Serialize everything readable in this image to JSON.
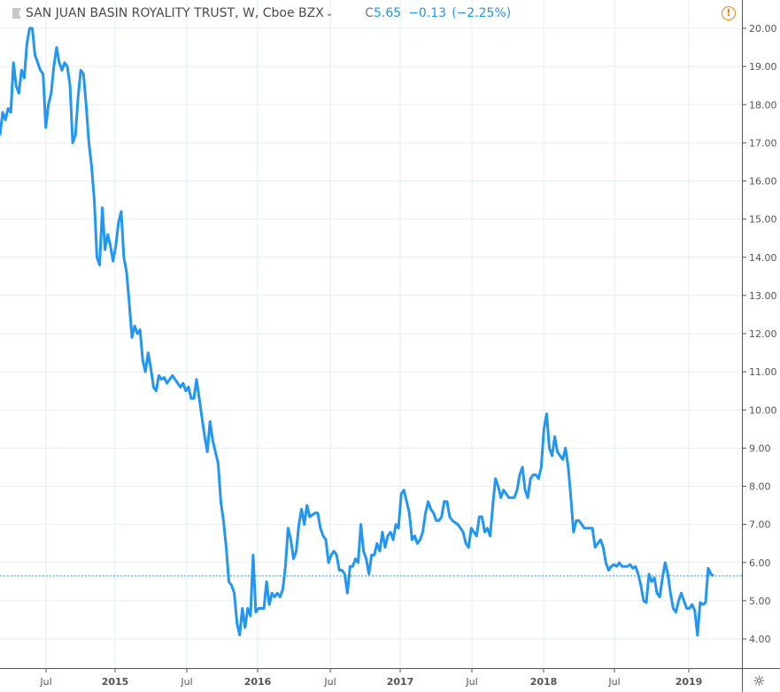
{
  "header": {
    "title": "SAN JUAN BASIN ROYALITY TRUST, W, Cboe BZX",
    "close_prefix": "C",
    "close": "5.65",
    "change": "−0.13",
    "change_pct": "(−2.25%)"
  },
  "icons": {
    "flag": "flag-icon",
    "dropdown": "chevron-down-icon",
    "warning": "warning-icon",
    "settings": "gear-icon"
  },
  "colors": {
    "line": "#2196f3",
    "grid": "#e6eef5",
    "axis": "#555555",
    "warning": "#f57c00"
  },
  "chart_data": {
    "type": "line",
    "title": "SAN JUAN BASIN ROYALITY TRUST, W, Cboe BZX",
    "interval": "weekly",
    "last_price": 5.65,
    "ylim": [
      3.2,
      20.7
    ],
    "yticks": [
      "4.00",
      "5.00",
      "6.00",
      "7.00",
      "8.00",
      "9.00",
      "10.00",
      "11.00",
      "12.00",
      "13.00",
      "14.00",
      "15.00",
      "16.00",
      "17.00",
      "18.00",
      "19.00",
      "20.00"
    ],
    "xticks": [
      "Jul",
      "2015",
      "Jul",
      "2016",
      "Jul",
      "2017",
      "Jul",
      "2018",
      "Jul",
      "2019"
    ],
    "values": [
      17.2,
      17.8,
      17.6,
      17.9,
      17.8,
      19.1,
      18.5,
      18.3,
      18.9,
      18.7,
      19.6,
      20.0,
      20.0,
      19.3,
      19.1,
      18.9,
      18.8,
      17.4,
      18.0,
      18.3,
      19.0,
      19.5,
      19.1,
      18.9,
      19.1,
      19.0,
      18.5,
      17.0,
      17.2,
      18.2,
      18.9,
      18.8,
      18.0,
      17.0,
      16.4,
      15.5,
      14.0,
      13.8,
      15.3,
      14.2,
      14.6,
      14.3,
      13.9,
      14.3,
      14.9,
      15.2,
      14.0,
      13.6,
      12.8,
      11.9,
      12.2,
      12.0,
      12.1,
      11.3,
      11.0,
      11.5,
      11.1,
      10.6,
      10.5,
      10.9,
      10.8,
      10.85,
      10.7,
      10.8,
      10.9,
      10.8,
      10.7,
      10.6,
      10.7,
      10.5,
      10.6,
      10.3,
      10.3,
      10.8,
      10.3,
      9.8,
      9.3,
      8.9,
      9.7,
      9.2,
      8.9,
      8.6,
      7.6,
      7.1,
      6.4,
      5.5,
      5.4,
      5.2,
      4.4,
      4.1,
      4.8,
      4.3,
      4.8,
      4.6,
      6.2,
      4.7,
      4.8,
      4.8,
      4.8,
      5.5,
      4.9,
      5.2,
      5.1,
      5.2,
      5.1,
      5.3,
      5.9,
      6.9,
      6.6,
      6.1,
      6.3,
      7.0,
      7.4,
      7.0,
      7.5,
      7.2,
      7.25,
      7.3,
      7.3,
      6.9,
      6.7,
      6.6,
      6.0,
      6.2,
      6.3,
      6.2,
      5.8,
      5.8,
      5.7,
      5.2,
      5.9,
      5.9,
      6.1,
      6.0,
      7.0,
      6.3,
      6.1,
      5.7,
      6.2,
      6.2,
      6.5,
      6.3,
      6.8,
      6.4,
      6.7,
      6.8,
      6.6,
      7.0,
      6.9,
      7.8,
      7.9,
      7.6,
      7.3,
      6.6,
      6.7,
      6.5,
      6.6,
      6.8,
      7.3,
      7.6,
      7.4,
      7.3,
      7.1,
      7.1,
      7.2,
      7.6,
      7.6,
      7.2,
      7.1,
      7.05,
      7.0,
      6.9,
      6.8,
      6.5,
      6.4,
      6.9,
      6.8,
      6.7,
      7.2,
      7.2,
      6.8,
      6.9,
      6.7,
      7.5,
      8.2,
      8.0,
      7.7,
      7.9,
      7.8,
      7.7,
      7.7,
      7.7,
      7.9,
      8.3,
      8.5,
      7.9,
      7.7,
      8.2,
      8.3,
      8.3,
      8.2,
      8.5,
      9.5,
      9.9,
      9.0,
      8.8,
      9.3,
      8.9,
      8.8,
      8.7,
      9.0,
      8.5,
      7.7,
      6.8,
      7.1,
      7.1,
      7.0,
      6.9,
      6.9,
      6.9,
      6.9,
      6.4,
      6.5,
      6.6,
      6.4,
      6.0,
      5.8,
      5.9,
      5.95,
      5.9,
      6.0,
      5.9,
      5.9,
      5.9,
      5.95,
      5.85,
      5.9,
      5.7,
      5.4,
      5.0,
      4.95,
      5.7,
      5.5,
      5.6,
      5.2,
      5.1,
      5.6,
      6.0,
      5.7,
      5.2,
      4.8,
      4.7,
      5.0,
      5.2,
      5.0,
      4.8,
      4.8,
      4.9,
      4.75,
      4.1,
      4.95,
      4.9,
      4.95,
      5.85,
      5.7,
      5.65
    ]
  }
}
